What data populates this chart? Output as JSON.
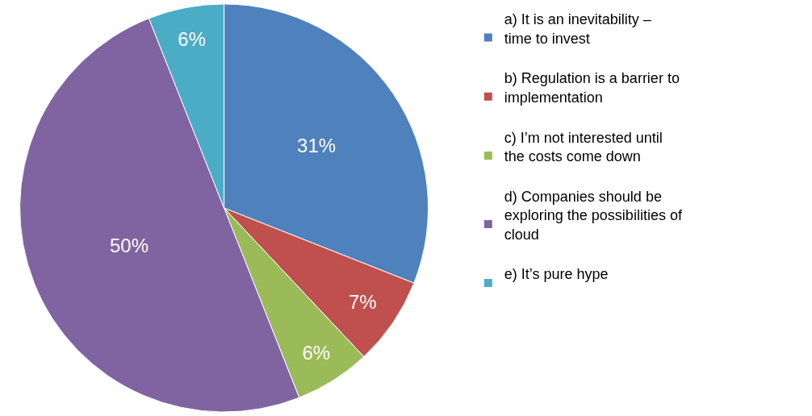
{
  "chart_data": {
    "type": "pie",
    "categories": [
      "a) It is an inevitability – time to invest",
      "b) Regulation is a barrier to implementation",
      "c) I’m not interested until the costs come down",
      "d) Companies should be exploring the possibilities of cloud",
      "e) It’s pure hype"
    ],
    "values": [
      31,
      7,
      6,
      50,
      6
    ],
    "value_labels": [
      "31%",
      "7%",
      "6%",
      "50%",
      "6%"
    ],
    "colors": [
      "#4f81bd",
      "#c0504d",
      "#9bbb59",
      "#8064a2",
      "#4bacc6"
    ],
    "legend": "right"
  }
}
